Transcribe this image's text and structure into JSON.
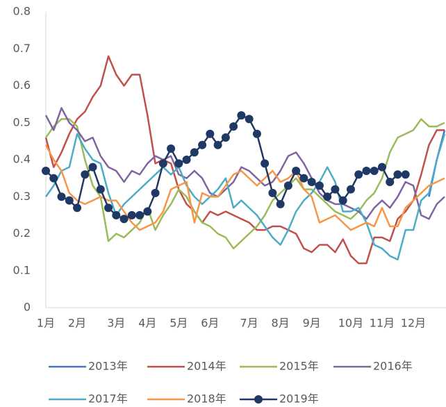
{
  "chart_data": {
    "type": "line",
    "categories": [
      "1月",
      null,
      null,
      null,
      "2月",
      null,
      null,
      null,
      null,
      "3月",
      null,
      null,
      null,
      "4月",
      null,
      null,
      null,
      "5月",
      null,
      null,
      null,
      "6月",
      null,
      null,
      null,
      null,
      "7月",
      null,
      null,
      null,
      "8月",
      null,
      null,
      null,
      "9月",
      null,
      null,
      null,
      null,
      "10月",
      null,
      null,
      null,
      "11月",
      null,
      null,
      null,
      "12月",
      null,
      null,
      null,
      null
    ],
    "ylim": [
      0,
      0.8
    ],
    "yticks": [
      0,
      0.1,
      0.2,
      0.3,
      0.4,
      0.5,
      0.6,
      0.7,
      0.8
    ],
    "grid": false,
    "series": [
      {
        "name": "2013年",
        "color": "#4472c4",
        "marker": false,
        "values": [
          null,
          null,
          null,
          null,
          null,
          null,
          null,
          null,
          null,
          null,
          null,
          null,
          null,
          null,
          null,
          null,
          null,
          null,
          null,
          null,
          null,
          null,
          null,
          null,
          null,
          null,
          null,
          null,
          null,
          null,
          null,
          null,
          null,
          null,
          null,
          null,
          null,
          null,
          null,
          null,
          null,
          null,
          null,
          null,
          null,
          null,
          null,
          null,
          null,
          0.3,
          0.4,
          0.48
        ]
      },
      {
        "name": "2014年",
        "color": "#c0504d",
        "marker": false,
        "values": [
          0.46,
          0.38,
          0.42,
          0.47,
          0.51,
          0.53,
          0.57,
          0.6,
          0.68,
          0.63,
          0.6,
          0.63,
          0.63,
          0.52,
          0.39,
          0.4,
          0.39,
          0.32,
          0.28,
          0.26,
          0.23,
          0.26,
          0.25,
          0.26,
          0.25,
          0.24,
          0.23,
          0.21,
          0.21,
          0.22,
          0.22,
          0.21,
          0.2,
          0.16,
          0.15,
          0.17,
          0.17,
          0.15,
          0.185,
          0.14,
          0.12,
          0.12,
          0.19,
          0.19,
          0.18,
          0.24,
          0.26,
          0.29,
          0.36,
          0.44,
          0.48,
          0.48
        ]
      },
      {
        "name": "2015年",
        "color": "#9bbb59",
        "marker": false,
        "values": [
          0.46,
          0.49,
          0.51,
          0.51,
          0.49,
          0.4,
          0.33,
          0.3,
          0.18,
          0.2,
          0.19,
          0.21,
          0.23,
          0.27,
          0.21,
          0.25,
          0.28,
          0.32,
          0.3,
          0.26,
          0.23,
          0.22,
          0.2,
          0.19,
          0.16,
          0.18,
          0.2,
          0.22,
          0.25,
          0.29,
          0.31,
          0.33,
          0.35,
          0.32,
          0.32,
          0.3,
          0.28,
          0.26,
          0.25,
          0.24,
          0.26,
          0.29,
          0.31,
          0.35,
          0.42,
          0.46,
          0.47,
          0.48,
          0.51,
          0.49,
          0.49,
          0.5
        ]
      },
      {
        "name": "2016年",
        "color": "#8064a2",
        "marker": false,
        "values": [
          0.52,
          0.48,
          0.54,
          0.5,
          0.48,
          0.45,
          0.46,
          0.41,
          0.38,
          0.37,
          0.34,
          0.37,
          0.36,
          0.39,
          0.41,
          0.4,
          0.41,
          0.36,
          0.35,
          0.37,
          0.35,
          0.31,
          0.3,
          0.32,
          0.34,
          0.38,
          0.37,
          0.35,
          0.33,
          0.34,
          0.37,
          0.41,
          0.42,
          0.39,
          0.35,
          0.31,
          0.29,
          0.28,
          0.28,
          0.27,
          0.26,
          0.24,
          0.27,
          0.29,
          0.27,
          0.3,
          0.34,
          0.33,
          0.25,
          0.24,
          0.28,
          0.3
        ]
      },
      {
        "name": "2017年",
        "color": "#4bacc6",
        "marker": false,
        "values": [
          0.3,
          0.33,
          0.37,
          0.38,
          0.47,
          0.43,
          0.4,
          0.39,
          0.31,
          0.25,
          0.28,
          0.3,
          0.32,
          0.34,
          0.36,
          0.38,
          0.36,
          0.38,
          0.33,
          0.3,
          0.28,
          0.3,
          0.32,
          0.35,
          0.27,
          0.29,
          0.27,
          0.25,
          0.22,
          0.19,
          0.17,
          0.21,
          0.26,
          0.29,
          0.31,
          0.34,
          0.38,
          0.34,
          0.26,
          0.26,
          0.27,
          0.23,
          0.17,
          0.16,
          0.14,
          0.13,
          0.21,
          0.21,
          0.29,
          0.31,
          0.4,
          0.47
        ]
      },
      {
        "name": "2018年",
        "color": "#f79646",
        "marker": false,
        "values": [
          0.44,
          0.4,
          0.37,
          0.31,
          0.29,
          0.28,
          0.29,
          0.3,
          0.29,
          0.29,
          0.26,
          0.23,
          0.21,
          0.22,
          0.23,
          0.26,
          0.32,
          0.33,
          0.34,
          0.23,
          0.31,
          0.3,
          0.3,
          0.33,
          0.36,
          0.37,
          0.35,
          0.33,
          0.35,
          0.37,
          0.34,
          0.35,
          0.37,
          0.32,
          0.3,
          0.23,
          0.24,
          0.25,
          0.23,
          0.21,
          0.22,
          0.23,
          0.22,
          0.27,
          0.22,
          0.22,
          0.27,
          0.29,
          0.31,
          0.33,
          0.34,
          0.35
        ]
      },
      {
        "name": "2019年",
        "color": "#1f3864",
        "marker": true,
        "values": [
          0.37,
          0.35,
          0.3,
          0.29,
          0.27,
          0.36,
          0.38,
          0.32,
          0.27,
          0.25,
          0.24,
          0.25,
          0.25,
          0.26,
          0.31,
          0.39,
          0.43,
          0.39,
          0.4,
          0.42,
          0.44,
          0.47,
          0.44,
          0.46,
          0.49,
          0.52,
          0.51,
          0.47,
          0.39,
          0.31,
          0.28,
          0.33,
          0.37,
          0.35,
          0.34,
          0.33,
          0.3,
          0.32,
          0.29,
          0.32,
          0.36,
          0.37,
          0.37,
          0.38,
          0.34,
          0.36,
          0.36,
          null,
          null,
          null,
          null,
          null
        ]
      }
    ]
  }
}
